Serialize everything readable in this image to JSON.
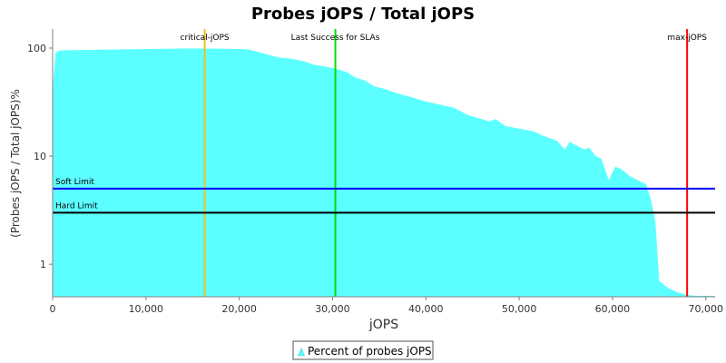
{
  "chart_data": {
    "type": "area",
    "title": "Probes jOPS / Total jOPS",
    "xlabel": "jOPS",
    "ylabel": "(Probes jOPS / Total jOPS)%",
    "xlim": [
      0,
      71000
    ],
    "ylim": [
      0.5,
      150
    ],
    "yscale": "log",
    "grid": false,
    "x_ticks": [
      {
        "value": 0,
        "label": "0"
      },
      {
        "value": 10000,
        "label": "10,000"
      },
      {
        "value": 20000,
        "label": "20,000"
      },
      {
        "value": 30000,
        "label": "30,000"
      },
      {
        "value": 40000,
        "label": "40,000"
      },
      {
        "value": 50000,
        "label": "50,000"
      },
      {
        "value": 60000,
        "label": "60,000"
      },
      {
        "value": 70000,
        "label": "70,000"
      }
    ],
    "y_ticks": [
      {
        "value": 1,
        "label": "1"
      },
      {
        "value": 10,
        "label": "10"
      },
      {
        "value": 100,
        "label": "100"
      }
    ],
    "series": [
      {
        "name": "Percent of probes jOPS",
        "color": "#5cffff",
        "x": [
          0,
          300,
          700,
          3000,
          7000,
          10000,
          14000,
          17000,
          20000,
          21000,
          22000,
          23500,
          24200,
          25500,
          27000,
          28000,
          29000,
          30500,
          31500,
          32500,
          33500,
          34500,
          35500,
          37000,
          38500,
          40000,
          41500,
          43000,
          44500,
          46000,
          46800,
          47500,
          48500,
          50000,
          51500,
          52500,
          54000,
          54900,
          55400,
          56200,
          57000,
          57500,
          58200,
          58800,
          59600,
          60300,
          61000,
          61900,
          62700,
          63600,
          64100,
          64600,
          65000,
          66000,
          67000,
          68000,
          69000,
          71000
        ],
        "y": [
          40,
          90,
          95,
          96,
          97,
          98,
          99,
          99,
          98,
          97,
          92,
          85,
          82,
          80,
          75,
          70,
          68,
          64,
          60,
          53,
          50,
          44,
          42,
          38,
          35,
          32,
          30,
          28,
          24,
          22,
          21,
          22,
          19,
          18,
          17,
          15.5,
          14,
          11.5,
          13.5,
          12.5,
          11.5,
          12,
          10,
          9.5,
          6,
          8,
          7.5,
          6.5,
          6,
          5.5,
          4,
          2.5,
          0.7,
          0.6,
          0.55,
          0.52,
          0.51,
          0.51
        ]
      }
    ],
    "reference_lines": [
      {
        "name": "critical-jOPS",
        "orientation": "vertical",
        "value": 16300,
        "color": "#f0c020"
      },
      {
        "name": "Last Success for SLAs",
        "orientation": "vertical",
        "value": 30300,
        "color": "#00e000"
      },
      {
        "name": "max-jOPS",
        "orientation": "vertical",
        "value": 68000,
        "color": "#ff0000"
      },
      {
        "name": "Soft Limit",
        "orientation": "horizontal",
        "value": 5,
        "color": "#0000ff"
      },
      {
        "name": "Hard Limit",
        "orientation": "horizontal",
        "value": 3,
        "color": "#000000"
      }
    ],
    "legend": {
      "position": "bottom",
      "label": "Percent of probes jOPS"
    }
  }
}
